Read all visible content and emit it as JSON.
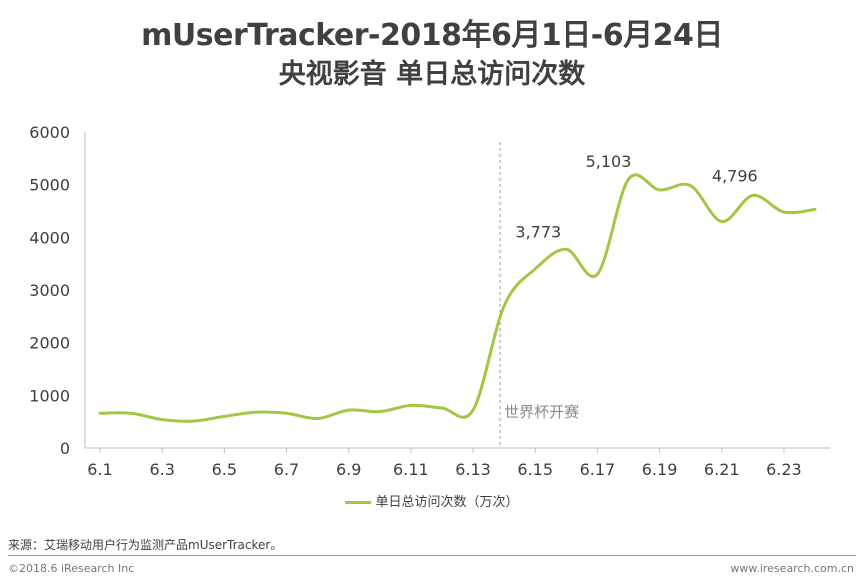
{
  "chart_data": {
    "type": "line",
    "title": "mUserTracker-2018年6月1日-6月24日",
    "subtitle": "央视影音 单日总访问次数",
    "x": [
      "6.1",
      "6.2",
      "6.3",
      "6.4",
      "6.5",
      "6.6",
      "6.7",
      "6.8",
      "6.9",
      "6.10",
      "6.11",
      "6.12",
      "6.13",
      "6.14",
      "6.15",
      "6.16",
      "6.17",
      "6.18",
      "6.19",
      "6.20",
      "6.21",
      "6.22",
      "6.23",
      "6.24"
    ],
    "x_tick_labels": [
      "6.1",
      "6.3",
      "6.5",
      "6.7",
      "6.9",
      "6.11",
      "6.13",
      "6.15",
      "6.17",
      "6.19",
      "6.21",
      "6.23"
    ],
    "series": [
      {
        "name": "单日总访问次数（万次）",
        "color": "#a3c644",
        "values": [
          660,
          660,
          540,
          510,
          600,
          680,
          660,
          560,
          720,
          690,
          810,
          760,
          720,
          2700,
          3400,
          3773,
          3300,
          5103,
          4900,
          4980,
          4300,
          4796,
          4480,
          4530
        ]
      }
    ],
    "ylim": [
      0,
      6000
    ],
    "y_ticks": [
      "0",
      "1000",
      "2000",
      "3000",
      "4000",
      "5000",
      "6000"
    ],
    "grid": false,
    "legend": "bottom",
    "data_labels": [
      {
        "x": "6.16",
        "text": "3,773"
      },
      {
        "x": "6.18",
        "text": "5,103"
      },
      {
        "x": "6.22",
        "text": "4,796"
      }
    ],
    "annotation": {
      "x": "6.14",
      "text": "世界杯开赛",
      "style": "dashed-vertical-line"
    }
  },
  "footer": {
    "source": "来源：艾瑞移动用户行为监测产品mUserTracker。",
    "copyright": "©2018.6 iResearch Inc",
    "website": "www.iresearch.com.cn"
  }
}
